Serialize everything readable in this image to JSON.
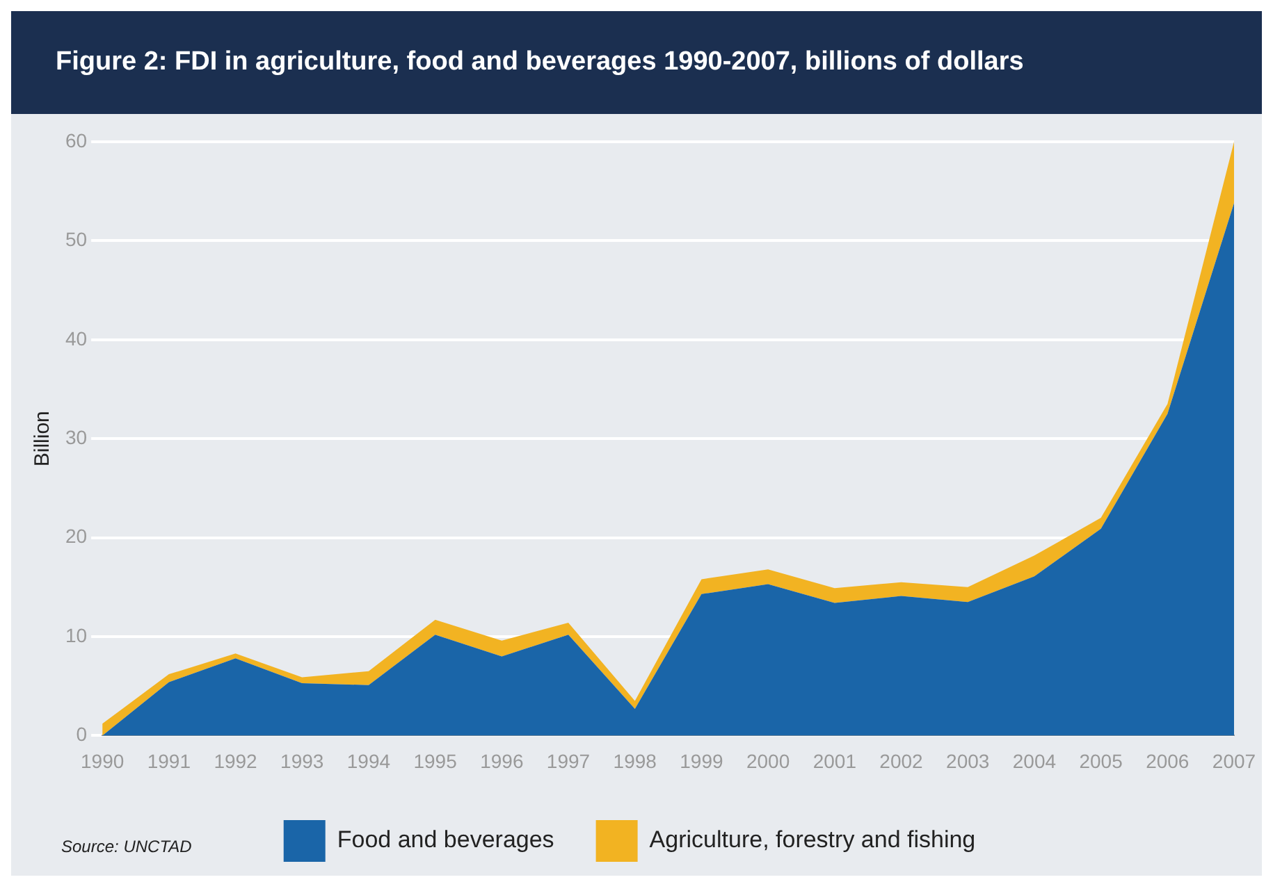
{
  "chart_data": {
    "type": "area",
    "title": "Figure 2: FDI in agriculture, food and beverages 1990-2007, billions of dollars",
    "ylabel": "Billion",
    "categories": [
      "1990",
      "1991",
      "1992",
      "1993",
      "1994",
      "1995",
      "1996",
      "1997",
      "1998",
      "1999",
      "2000",
      "2001",
      "2002",
      "2003",
      "2004",
      "2005",
      "2006",
      "2007"
    ],
    "stacked": true,
    "series": [
      {
        "name": "Food and beverages",
        "color": "#1a65a8",
        "values": [
          0,
          5.4,
          7.8,
          5.3,
          5.1,
          10.2,
          8.0,
          10.2,
          2.7,
          14.3,
          15.3,
          13.4,
          14.1,
          13.5,
          16.1,
          20.9,
          32.5,
          53.8
        ]
      },
      {
        "name": "Agriculture, forestry and fishing",
        "color": "#f2b322",
        "values": [
          1.2,
          0.8,
          0.5,
          0.6,
          1.4,
          1.5,
          1.6,
          1.2,
          0.8,
          1.5,
          1.5,
          1.5,
          1.4,
          1.5,
          2.1,
          1.1,
          1.0,
          6.2
        ]
      }
    ],
    "ylim": [
      0,
      60
    ],
    "yticks": [
      0,
      10,
      20,
      30,
      40,
      50,
      60
    ],
    "grid": "y",
    "legend": "bottom",
    "annotations": [
      "Source: UNCTAD"
    ]
  }
}
